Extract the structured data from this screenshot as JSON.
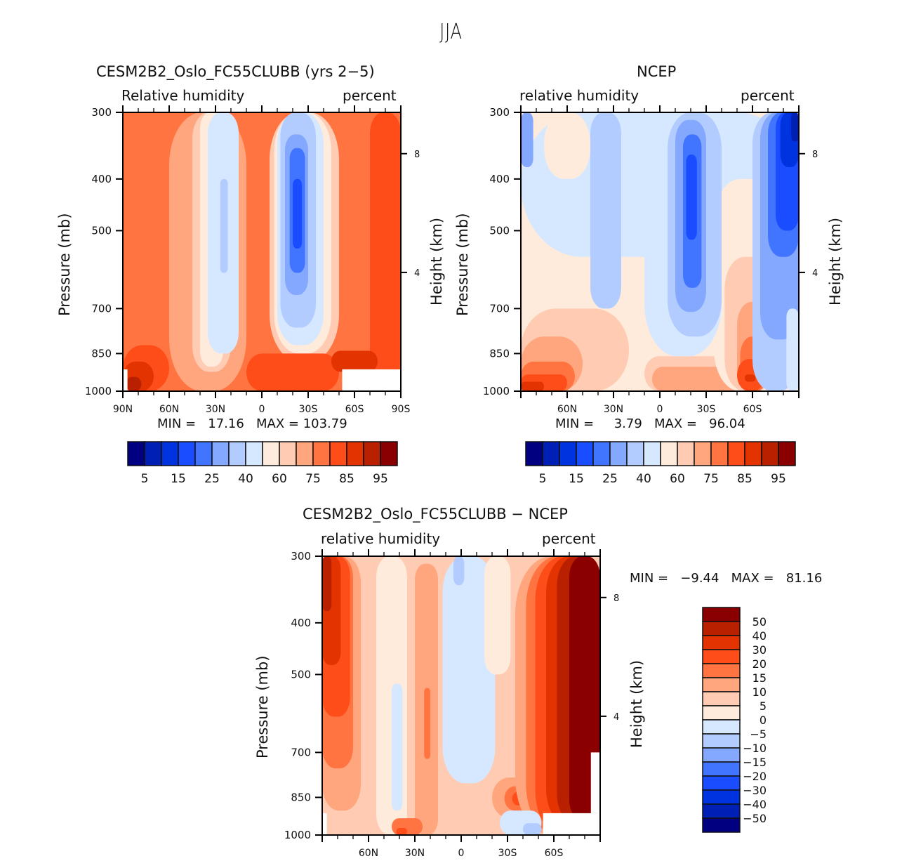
{
  "title": "JJA",
  "palette": [
    "#000080",
    "#001fb4",
    "#0033e0",
    "#1a4dff",
    "#4275ff",
    "#85a8ff",
    "#b3ccff",
    "#d6e8ff",
    "#ffebdb",
    "#ffcbb3",
    "#ffa67f",
    "#ff7440",
    "#ff4d19",
    "#e33300",
    "#b82000",
    "#8a0000"
  ],
  "chart_data": [
    {
      "type": "heatmap",
      "title": "CESM2B2_Oslo_FC55CLUBB (yrs 2-5)",
      "left_label": "Relative humidity",
      "right_label": "percent",
      "xlabel": "",
      "ylabel": "Pressure (mb)",
      "ylabel_right": "Height (km)",
      "x_ticks": [
        "90N",
        "60N",
        "30N",
        "0",
        "30S",
        "60S",
        "90S"
      ],
      "x_range": [
        90,
        -90
      ],
      "y_ticks": [
        "300",
        "400",
        "500",
        "700",
        "850",
        "1000"
      ],
      "y_range": [
        300,
        1000
      ],
      "y_right_ticks": [
        "8",
        "4"
      ],
      "stats": {
        "min_label": "MIN =",
        "min": "17.16",
        "max_label": "MAX =",
        "max": "103.79"
      },
      "levels": [
        "5",
        "15",
        "25",
        "40",
        "60",
        "75",
        "85",
        "95"
      ],
      "colorbar_labels": [
        "5",
        "15",
        "25",
        "40",
        "60",
        "75",
        "85",
        "95"
      ],
      "background_band": 11,
      "features": [
        {
          "band": 10,
          "lat": [
            60,
            10
          ],
          "p": [
            300,
            1000
          ]
        },
        {
          "band": 9,
          "lat": [
            45,
            20
          ],
          "p": [
            300,
            920
          ]
        },
        {
          "band": 8,
          "lat": [
            40,
            25
          ],
          "p": [
            300,
            900
          ]
        },
        {
          "band": 7,
          "lat": [
            35,
            15
          ],
          "p": [
            300,
            850
          ]
        },
        {
          "band": 6,
          "lat": [
            27,
            22
          ],
          "p": [
            400,
            600
          ]
        },
        {
          "band": 9,
          "lat": [
            -5,
            -50
          ],
          "p": [
            300,
            880
          ]
        },
        {
          "band": 8,
          "lat": [
            -8,
            -45
          ],
          "p": [
            300,
            850
          ]
        },
        {
          "band": 7,
          "lat": [
            -10,
            -40
          ],
          "p": [
            300,
            820
          ]
        },
        {
          "band": 6,
          "lat": [
            -12,
            -35
          ],
          "p": [
            300,
            760
          ]
        },
        {
          "band": 5,
          "lat": [
            -15,
            -30
          ],
          "p": [
            330,
            660
          ]
        },
        {
          "band": 4,
          "lat": [
            -18,
            -28
          ],
          "p": [
            350,
            600
          ]
        },
        {
          "band": 3,
          "lat": [
            -20,
            -26
          ],
          "p": [
            400,
            540
          ]
        },
        {
          "band": 12,
          "lat": [
            -70,
            -90
          ],
          "p": [
            300,
            1000
          ]
        },
        {
          "band": 12,
          "lat": [
            90,
            60
          ],
          "p": [
            820,
            1000
          ]
        },
        {
          "band": 13,
          "lat": [
            90,
            70
          ],
          "p": [
            880,
            1000
          ]
        },
        {
          "band": 14,
          "lat": [
            88,
            78
          ],
          "p": [
            940,
            1000
          ]
        },
        {
          "band": 12,
          "lat": [
            10,
            -50
          ],
          "p": [
            850,
            1000
          ]
        },
        {
          "band": 13,
          "lat": [
            -45,
            -75
          ],
          "p": [
            840,
            920
          ]
        }
      ],
      "missing": [
        {
          "lat": [
            -52,
            -90
          ],
          "p": [
            910,
            1000
          ]
        },
        {
          "lat": [
            90,
            87
          ],
          "p": [
            910,
            1000
          ]
        }
      ]
    },
    {
      "type": "heatmap",
      "title": "NCEP",
      "left_label": "relative humidity",
      "right_label": "percent",
      "xlabel": "",
      "ylabel": "Pressure (mb)",
      "ylabel_right": "Height (km)",
      "x_ticks": [
        "",
        "60N",
        "30N",
        "0",
        "30S",
        "60S",
        ""
      ],
      "x_range": [
        90,
        -90
      ],
      "y_ticks": [
        "300",
        "400",
        "500",
        "700",
        "850",
        "1000"
      ],
      "y_range": [
        300,
        1000
      ],
      "y_right_ticks": [
        "8",
        "4"
      ],
      "stats": {
        "min_label": "MIN =",
        "min": "3.79",
        "max_label": "MAX =",
        "max": "96.04"
      },
      "levels": [
        "5",
        "15",
        "25",
        "40",
        "60",
        "75",
        "85",
        "95"
      ],
      "colorbar_labels": [
        "5",
        "15",
        "25",
        "40",
        "60",
        "75",
        "85",
        "95"
      ],
      "background_band": 8,
      "features": [
        {
          "band": 7,
          "lat": [
            90,
            -90
          ],
          "p": [
            300,
            560
          ]
        },
        {
          "band": 9,
          "lat": [
            90,
            20
          ],
          "p": [
            700,
            1000
          ]
        },
        {
          "band": 10,
          "lat": [
            90,
            50
          ],
          "p": [
            790,
            1000
          ]
        },
        {
          "band": 11,
          "lat": [
            90,
            55
          ],
          "p": [
            880,
            1000
          ]
        },
        {
          "band": 12,
          "lat": [
            90,
            60
          ],
          "p": [
            930,
            1000
          ]
        },
        {
          "band": 13,
          "lat": [
            90,
            75
          ],
          "p": [
            960,
            1000
          ]
        },
        {
          "band": 9,
          "lat": [
            10,
            -70
          ],
          "p": [
            860,
            1000
          ]
        },
        {
          "band": 10,
          "lat": [
            5,
            -65
          ],
          "p": [
            900,
            1000
          ]
        },
        {
          "band": 8,
          "lat": [
            -35,
            -75
          ],
          "p": [
            400,
            1000
          ]
        },
        {
          "band": 9,
          "lat": [
            -42,
            -72
          ],
          "p": [
            560,
            1000
          ]
        },
        {
          "band": 10,
          "lat": [
            -50,
            -72
          ],
          "p": [
            680,
            1000
          ]
        },
        {
          "band": 11,
          "lat": [
            -52,
            -70
          ],
          "p": [
            790,
            1000
          ]
        },
        {
          "band": 12,
          "lat": [
            -50,
            -68
          ],
          "p": [
            870,
            1000
          ]
        },
        {
          "band": 13,
          "lat": [
            -55,
            -62
          ],
          "p": [
            930,
            960
          ]
        },
        {
          "band": 7,
          "lat": [
            10,
            -40
          ],
          "p": [
            300,
            860
          ]
        },
        {
          "band": 6,
          "lat": [
            45,
            25
          ],
          "p": [
            300,
            700
          ]
        },
        {
          "band": 6,
          "lat": [
            -5,
            -40
          ],
          "p": [
            300,
            790
          ]
        },
        {
          "band": 5,
          "lat": [
            -10,
            -30
          ],
          "p": [
            310,
            710
          ]
        },
        {
          "band": 4,
          "lat": [
            -15,
            -27
          ],
          "p": [
            330,
            640
          ]
        },
        {
          "band": 3,
          "lat": [
            -17,
            -24
          ],
          "p": [
            360,
            520
          ]
        },
        {
          "band": 6,
          "lat": [
            -60,
            -90
          ],
          "p": [
            300,
            1000
          ]
        },
        {
          "band": 5,
          "lat": [
            -65,
            -90
          ],
          "p": [
            300,
            800
          ]
        },
        {
          "band": 4,
          "lat": [
            -70,
            -90
          ],
          "p": [
            300,
            560
          ]
        },
        {
          "band": 3,
          "lat": [
            -75,
            -90
          ],
          "p": [
            300,
            500
          ]
        },
        {
          "band": 2,
          "lat": [
            -78,
            -90
          ],
          "p": [
            300,
            380
          ]
        },
        {
          "band": 1,
          "lat": [
            -85,
            -90
          ],
          "p": [
            300,
            340
          ]
        },
        {
          "band": 5,
          "lat": [
            90,
            82
          ],
          "p": [
            300,
            380
          ]
        },
        {
          "band": 8,
          "lat": [
            75,
            45
          ],
          "p": [
            300,
            400
          ]
        },
        {
          "band": 7,
          "lat": [
            -82,
            -90
          ],
          "p": [
            700,
            1000
          ]
        }
      ],
      "missing": []
    },
    {
      "type": "heatmap",
      "title": "CESM2B2_Oslo_FC55CLUBB - NCEP",
      "left_label": "relative humidity",
      "right_label": "percent",
      "xlabel": "",
      "ylabel": "Pressure (mb)",
      "ylabel_right": "Height (km)",
      "x_ticks": [
        "",
        "60N",
        "30N",
        "0",
        "30S",
        "60S",
        ""
      ],
      "x_range": [
        90,
        -90
      ],
      "y_ticks": [
        "300",
        "400",
        "500",
        "700",
        "850",
        "1000"
      ],
      "y_range": [
        300,
        1000
      ],
      "y_right_ticks": [
        "8",
        "4"
      ],
      "stats": {
        "min_label": "MIN =",
        "min": "-9.44",
        "max_label": "MAX =",
        "max": "81.16"
      },
      "levels": [
        "-50",
        "-40",
        "-30",
        "-20",
        "-15",
        "-10",
        "-5",
        "0",
        "5",
        "10",
        "15",
        "20",
        "30",
        "40",
        "50"
      ],
      "colorbar_labels": [
        "50",
        "40",
        "30",
        "20",
        "15",
        "10",
        "5",
        "0",
        "-5",
        "-10",
        "-15",
        "-20",
        "-30",
        "-40",
        "-50"
      ],
      "background_band": 9,
      "features": [
        {
          "band": 10,
          "lat": [
            90,
            65
          ],
          "p": [
            300,
            900
          ]
        },
        {
          "band": 11,
          "lat": [
            90,
            70
          ],
          "p": [
            300,
            750
          ]
        },
        {
          "band": 12,
          "lat": [
            90,
            72
          ],
          "p": [
            300,
            600
          ]
        },
        {
          "band": 13,
          "lat": [
            90,
            78
          ],
          "p": [
            300,
            480
          ]
        },
        {
          "band": 14,
          "lat": [
            90,
            84
          ],
          "p": [
            300,
            380
          ]
        },
        {
          "band": 8,
          "lat": [
            55,
            35
          ],
          "p": [
            300,
            1000
          ]
        },
        {
          "band": 7,
          "lat": [
            45,
            38
          ],
          "p": [
            520,
            900
          ]
        },
        {
          "band": 10,
          "lat": [
            30,
            15
          ],
          "p": [
            310,
            1000
          ]
        },
        {
          "band": 11,
          "lat": [
            24,
            20
          ],
          "p": [
            530,
            720
          ]
        },
        {
          "band": 7,
          "lat": [
            12,
            -22
          ],
          "p": [
            300,
            800
          ]
        },
        {
          "band": 6,
          "lat": [
            5,
            -2
          ],
          "p": [
            300,
            340
          ]
        },
        {
          "band": 8,
          "lat": [
            -15,
            -32
          ],
          "p": [
            300,
            500
          ]
        },
        {
          "band": 10,
          "lat": [
            -20,
            -55
          ],
          "p": [
            780,
            930
          ]
        },
        {
          "band": 11,
          "lat": [
            -28,
            -50
          ],
          "p": [
            810,
            900
          ]
        },
        {
          "band": 12,
          "lat": [
            -33,
            -45
          ],
          "p": [
            830,
            880
          ]
        },
        {
          "band": 10,
          "lat": [
            -35,
            -90
          ],
          "p": [
            300,
            1000
          ]
        },
        {
          "band": 11,
          "lat": [
            -42,
            -90
          ],
          "p": [
            300,
            1000
          ]
        },
        {
          "band": 12,
          "lat": [
            -48,
            -90
          ],
          "p": [
            300,
            1000
          ]
        },
        {
          "band": 13,
          "lat": [
            -55,
            -90
          ],
          "p": [
            300,
            960
          ]
        },
        {
          "band": 14,
          "lat": [
            -62,
            -90
          ],
          "p": [
            300,
            950
          ]
        },
        {
          "band": 15,
          "lat": [
            -70,
            -90
          ],
          "p": [
            300,
            940
          ]
        },
        {
          "band": 7,
          "lat": [
            -25,
            -52
          ],
          "p": [
            900,
            1000
          ]
        },
        {
          "band": 6,
          "lat": [
            -40,
            -52
          ],
          "p": [
            950,
            1000
          ]
        },
        {
          "band": 11,
          "lat": [
            45,
            25
          ],
          "p": [
            930,
            1000
          ]
        },
        {
          "band": 12,
          "lat": [
            42,
            35
          ],
          "p": [
            970,
            1000
          ]
        }
      ],
      "missing": [
        {
          "lat": [
            -53,
            -90
          ],
          "p": [
            910,
            1000
          ]
        },
        {
          "lat": [
            -84,
            -90
          ],
          "p": [
            700,
            910
          ]
        },
        {
          "lat": [
            90,
            87
          ],
          "p": [
            910,
            1000
          ]
        }
      ]
    }
  ]
}
